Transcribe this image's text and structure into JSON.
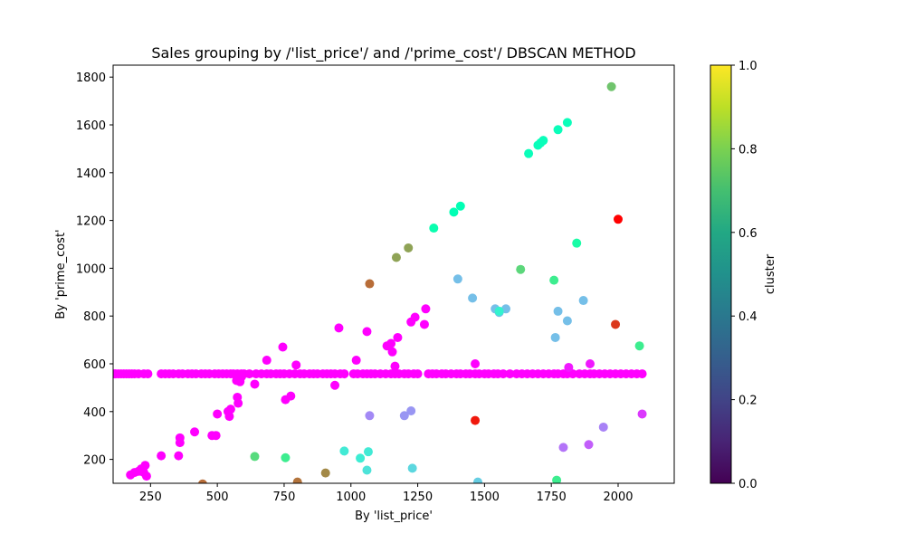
{
  "chart_data": {
    "type": "scatter",
    "title": "Sales grouping by /'list_price'/ and /'prime_cost'/  DBSCAN METHOD",
    "xlabel": "By 'list_price'",
    "ylabel": "By 'prime_cost'",
    "xlim": [
      110,
      2210
    ],
    "ylim": [
      100,
      1850
    ],
    "xticks": [
      250,
      500,
      750,
      1000,
      1250,
      1500,
      1750,
      2000
    ],
    "yticks": [
      200,
      400,
      600,
      800,
      1000,
      1200,
      1400,
      1600,
      1800
    ],
    "colorbar": {
      "label": "cluster",
      "range": [
        0,
        1
      ],
      "ticks": [
        "0.0",
        "0.2",
        "0.4",
        "0.6",
        "0.8",
        "1.0"
      ],
      "colormap": "viridis"
    },
    "grid": false,
    "marker_colormap": "rainbow",
    "baseline_y": 558,
    "baseline_x": [
      115,
      120,
      130,
      140,
      150,
      160,
      170,
      180,
      190,
      205,
      225,
      240,
      290,
      305,
      320,
      335,
      355,
      370,
      390,
      405,
      420,
      440,
      455,
      470,
      490,
      505,
      520,
      535,
      550,
      560,
      575,
      590,
      600,
      620,
      645,
      665,
      685,
      700,
      720,
      735,
      750,
      770,
      790,
      810,
      825,
      845,
      860,
      875,
      895,
      910,
      925,
      940,
      960,
      975,
      1010,
      1025,
      1045,
      1060,
      1075,
      1090,
      1110,
      1130,
      1150,
      1165,
      1180,
      1200,
      1215,
      1235,
      1250,
      1290,
      1305,
      1320,
      1340,
      1355,
      1375,
      1395,
      1410,
      1430,
      1445,
      1465,
      1480,
      1500,
      1515,
      1535,
      1550,
      1570,
      1595,
      1620,
      1640,
      1660,
      1680,
      1700,
      1720,
      1740,
      1760,
      1775,
      1795,
      1810,
      1830,
      1855,
      1875,
      1895,
      1910,
      1930,
      1950,
      1970,
      1990,
      2010,
      2030,
      2050,
      2070,
      2090
    ],
    "points": [
      {
        "x": 175,
        "y": 135,
        "c": 0.0
      },
      {
        "x": 190,
        "y": 145,
        "c": 0.0
      },
      {
        "x": 205,
        "y": 150,
        "c": 0.0
      },
      {
        "x": 215,
        "y": 160,
        "c": 0.0
      },
      {
        "x": 225,
        "y": 145,
        "c": 0.0
      },
      {
        "x": 230,
        "y": 175,
        "c": 0.0
      },
      {
        "x": 235,
        "y": 130,
        "c": 0.0
      },
      {
        "x": 290,
        "y": 215,
        "c": 0.0
      },
      {
        "x": 355,
        "y": 215,
        "c": 0.0
      },
      {
        "x": 360,
        "y": 270,
        "c": 0.0
      },
      {
        "x": 360,
        "y": 290,
        "c": 0.0
      },
      {
        "x": 415,
        "y": 315,
        "c": 0.0
      },
      {
        "x": 480,
        "y": 300,
        "c": 0.0
      },
      {
        "x": 495,
        "y": 300,
        "c": 0.0
      },
      {
        "x": 500,
        "y": 390,
        "c": 0.0
      },
      {
        "x": 540,
        "y": 400,
        "c": 0.0
      },
      {
        "x": 545,
        "y": 380,
        "c": 0.0
      },
      {
        "x": 550,
        "y": 410,
        "c": 0.0
      },
      {
        "x": 575,
        "y": 460,
        "c": 0.0
      },
      {
        "x": 578,
        "y": 435,
        "c": 0.0
      },
      {
        "x": 572,
        "y": 530,
        "c": 0.0
      },
      {
        "x": 585,
        "y": 525,
        "c": 0.0
      },
      {
        "x": 590,
        "y": 545,
        "c": 0.0
      },
      {
        "x": 640,
        "y": 515,
        "c": 0.0
      },
      {
        "x": 685,
        "y": 615,
        "c": 0.0
      },
      {
        "x": 745,
        "y": 670,
        "c": 0.0
      },
      {
        "x": 755,
        "y": 450,
        "c": 0.0
      },
      {
        "x": 775,
        "y": 465,
        "c": 0.0
      },
      {
        "x": 795,
        "y": 595,
        "c": 0.0
      },
      {
        "x": 940,
        "y": 510,
        "c": 0.0
      },
      {
        "x": 955,
        "y": 750,
        "c": 0.0
      },
      {
        "x": 1020,
        "y": 615,
        "c": 0.0
      },
      {
        "x": 1060,
        "y": 735,
        "c": 0.0
      },
      {
        "x": 1135,
        "y": 675,
        "c": 0.0
      },
      {
        "x": 1150,
        "y": 685,
        "c": 0.0
      },
      {
        "x": 1155,
        "y": 650,
        "c": 0.0
      },
      {
        "x": 1165,
        "y": 590,
        "c": 0.0
      },
      {
        "x": 1175,
        "y": 710,
        "c": 0.0
      },
      {
        "x": 1225,
        "y": 775,
        "c": 0.0
      },
      {
        "x": 1240,
        "y": 795,
        "c": 0.0
      },
      {
        "x": 1275,
        "y": 765,
        "c": 0.0
      },
      {
        "x": 1280,
        "y": 830,
        "c": 0.0
      },
      {
        "x": 1465,
        "y": 600,
        "c": 0.0
      },
      {
        "x": 1815,
        "y": 585,
        "c": 0.03
      },
      {
        "x": 1895,
        "y": 600,
        "c": 0.03
      },
      {
        "x": 2090,
        "y": 390,
        "c": 0.07
      },
      {
        "x": 1890,
        "y": 262,
        "c": 0.12
      },
      {
        "x": 1795,
        "y": 250,
        "c": 0.15
      },
      {
        "x": 1945,
        "y": 335,
        "c": 0.17
      },
      {
        "x": 1070,
        "y": 383,
        "c": 0.18
      },
      {
        "x": 1200,
        "y": 383,
        "c": 0.2
      },
      {
        "x": 1225,
        "y": 403,
        "c": 0.2
      },
      {
        "x": 1400,
        "y": 955,
        "c": 0.27
      },
      {
        "x": 1455,
        "y": 875,
        "c": 0.27
      },
      {
        "x": 1540,
        "y": 830,
        "c": 0.27
      },
      {
        "x": 1555,
        "y": 815,
        "c": 0.27
      },
      {
        "x": 1580,
        "y": 830,
        "c": 0.27
      },
      {
        "x": 1765,
        "y": 710,
        "c": 0.27
      },
      {
        "x": 1775,
        "y": 820,
        "c": 0.27
      },
      {
        "x": 1810,
        "y": 780,
        "c": 0.27
      },
      {
        "x": 1870,
        "y": 865,
        "c": 0.27
      },
      {
        "x": 1475,
        "y": 105,
        "c": 0.3
      },
      {
        "x": 1230,
        "y": 163,
        "c": 0.32
      },
      {
        "x": 1060,
        "y": 155,
        "c": 0.35
      },
      {
        "x": 1065,
        "y": 232,
        "c": 0.37
      },
      {
        "x": 975,
        "y": 235,
        "c": 0.37
      },
      {
        "x": 1035,
        "y": 205,
        "c": 0.38
      },
      {
        "x": 1555,
        "y": 820,
        "c": 0.4
      },
      {
        "x": 1665,
        "y": 1480,
        "c": 0.48
      },
      {
        "x": 1700,
        "y": 1515,
        "c": 0.48
      },
      {
        "x": 1710,
        "y": 1525,
        "c": 0.48
      },
      {
        "x": 1720,
        "y": 1535,
        "c": 0.48
      },
      {
        "x": 1775,
        "y": 1580,
        "c": 0.48
      },
      {
        "x": 1810,
        "y": 1610,
        "c": 0.48
      },
      {
        "x": 1385,
        "y": 1235,
        "c": 0.5
      },
      {
        "x": 1410,
        "y": 1260,
        "c": 0.5
      },
      {
        "x": 1310,
        "y": 1168,
        "c": 0.52
      },
      {
        "x": 1845,
        "y": 1105,
        "c": 0.55
      },
      {
        "x": 755,
        "y": 207,
        "c": 0.62
      },
      {
        "x": 1770,
        "y": 113,
        "c": 0.62
      },
      {
        "x": 1760,
        "y": 950,
        "c": 0.62
      },
      {
        "x": 2080,
        "y": 675,
        "c": 0.62
      },
      {
        "x": 640,
        "y": 212,
        "c": 0.67
      },
      {
        "x": 1635,
        "y": 995,
        "c": 0.68
      },
      {
        "x": 1975,
        "y": 1760,
        "c": 0.72
      },
      {
        "x": 1170,
        "y": 1045,
        "c": 0.78
      },
      {
        "x": 1215,
        "y": 1085,
        "c": 0.78
      },
      {
        "x": 905,
        "y": 143,
        "c": 0.82
      },
      {
        "x": 800,
        "y": 105,
        "c": 0.85
      },
      {
        "x": 445,
        "y": 97,
        "c": 0.86
      },
      {
        "x": 1070,
        "y": 935,
        "c": 0.86
      },
      {
        "x": 1990,
        "y": 765,
        "c": 0.93
      },
      {
        "x": 1465,
        "y": 363,
        "c": 0.97
      },
      {
        "x": 2000,
        "y": 1205,
        "c": 1.0
      }
    ]
  }
}
